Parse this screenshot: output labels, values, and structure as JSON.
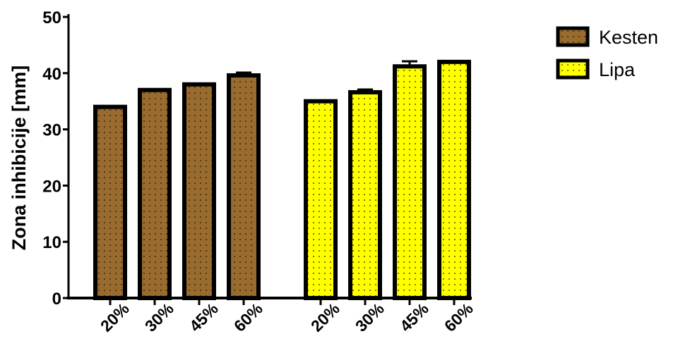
{
  "chart_data": {
    "type": "bar",
    "title": "",
    "xlabel": "",
    "ylabel": "Zona inhibicije [mm]",
    "ylim": [
      0,
      50
    ],
    "yticks": [
      0,
      10,
      20,
      30,
      40,
      50
    ],
    "legend_position": "top-right",
    "grid": false,
    "groups": [
      {
        "name": "Kesten",
        "color": "#996b2e",
        "dot_color": "#3a2a10",
        "categories": [
          "20%",
          "30%",
          "45%",
          "60%"
        ],
        "values": [
          34,
          37,
          38,
          39.6
        ],
        "errors": [
          0,
          0,
          0,
          0.5
        ]
      },
      {
        "name": "Lipa",
        "color": "#ffff00",
        "dot_color": "#555500",
        "categories": [
          "20%",
          "30%",
          "45%",
          "60%"
        ],
        "values": [
          35,
          36.6,
          41.2,
          42
        ],
        "errors": [
          0,
          0.5,
          0.9,
          0
        ]
      }
    ]
  }
}
